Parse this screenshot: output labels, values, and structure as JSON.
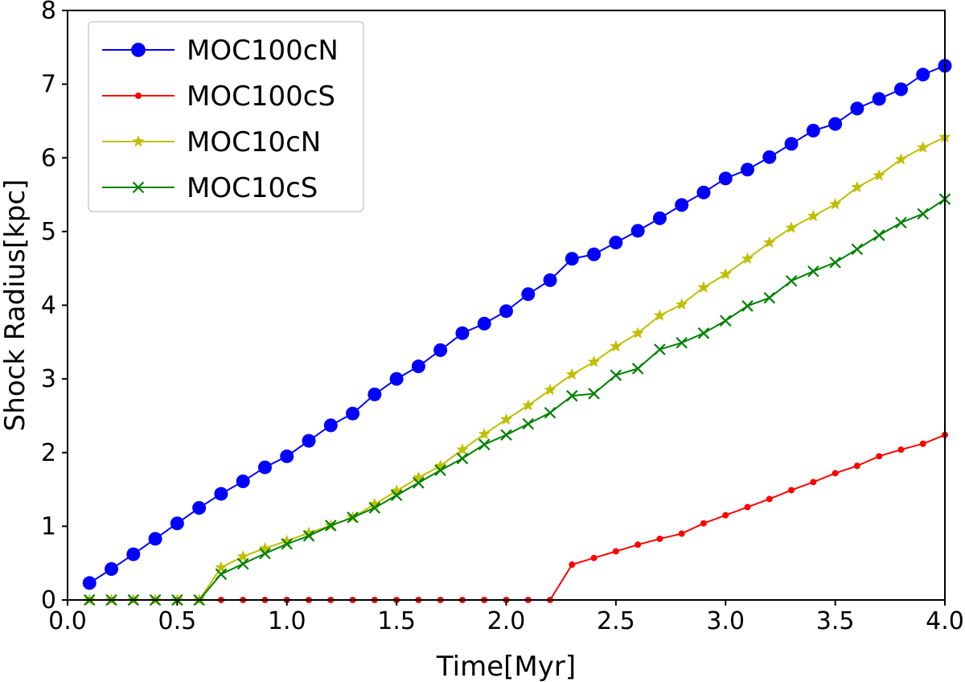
{
  "chart_data": {
    "type": "line",
    "title": "",
    "xlabel": "Time[Myr]",
    "ylabel": "Shock Radius[kpc]",
    "xlim": [
      0.0,
      4.0
    ],
    "ylim": [
      0,
      8
    ],
    "xticks": [
      "0.0",
      "0.5",
      "1.0",
      "1.5",
      "2.0",
      "2.5",
      "3.0",
      "3.5",
      "4.0"
    ],
    "yticks": [
      "0",
      "1",
      "2",
      "3",
      "4",
      "5",
      "6",
      "7",
      "8"
    ],
    "grid": false,
    "legend_position": "top-left",
    "x": [
      0.1,
      0.2,
      0.3,
      0.4,
      0.5,
      0.6,
      0.7,
      0.8,
      0.9,
      1.0,
      1.1,
      1.2,
      1.3,
      1.4,
      1.5,
      1.6,
      1.7,
      1.8,
      1.9,
      2.0,
      2.1,
      2.2,
      2.3,
      2.4,
      2.5,
      2.6,
      2.7,
      2.8,
      2.9,
      3.0,
      3.1,
      3.2,
      3.3,
      3.4,
      3.5,
      3.6,
      3.7,
      3.8,
      3.9,
      4.0
    ],
    "series": [
      {
        "name": "MOC100cN",
        "color": "#0000ff",
        "marker": "circle-large",
        "values": [
          0.23,
          0.42,
          0.62,
          0.83,
          1.04,
          1.25,
          1.44,
          1.61,
          1.8,
          1.95,
          2.16,
          2.37,
          2.53,
          2.79,
          3.0,
          3.17,
          3.39,
          3.62,
          3.75,
          3.92,
          4.15,
          4.34,
          4.63,
          4.69,
          4.85,
          5.01,
          5.18,
          5.36,
          5.53,
          5.72,
          5.84,
          6.01,
          6.19,
          6.37,
          6.46,
          6.67,
          6.8,
          6.93,
          7.13,
          7.25
        ]
      },
      {
        "name": "MOC100cS",
        "color": "#ff0000",
        "marker": "circle-small",
        "values": [
          0,
          0,
          0,
          0,
          0,
          0,
          0,
          0,
          0,
          0,
          0,
          0,
          0,
          0,
          0,
          0,
          0,
          0,
          0,
          0,
          0,
          0,
          0.48,
          0.57,
          0.66,
          0.75,
          0.83,
          0.9,
          1.04,
          1.15,
          1.26,
          1.37,
          1.49,
          1.6,
          1.72,
          1.82,
          1.95,
          2.04,
          2.12,
          2.24
        ]
      },
      {
        "name": "MOC10cN",
        "color": "#bfbf00",
        "marker": "star",
        "values": [
          0,
          0,
          0,
          0,
          0,
          0,
          0.44,
          0.59,
          0.7,
          0.8,
          0.91,
          1.01,
          1.12,
          1.3,
          1.48,
          1.66,
          1.82,
          2.04,
          2.25,
          2.45,
          2.64,
          2.85,
          3.06,
          3.23,
          3.44,
          3.62,
          3.86,
          4.01,
          4.24,
          4.42,
          4.63,
          4.85,
          5.05,
          5.21,
          5.37,
          5.6,
          5.76,
          5.98,
          6.14,
          6.28
        ]
      },
      {
        "name": "MOC10cS",
        "color": "#008000",
        "marker": "x",
        "values": [
          0,
          0,
          0,
          0,
          0,
          0,
          0.35,
          0.49,
          0.63,
          0.76,
          0.87,
          1.01,
          1.12,
          1.25,
          1.42,
          1.59,
          1.76,
          1.92,
          2.11,
          2.24,
          2.39,
          2.54,
          2.77,
          2.8,
          3.05,
          3.14,
          3.4,
          3.49,
          3.62,
          3.79,
          3.99,
          4.1,
          4.33,
          4.46,
          4.58,
          4.76,
          4.95,
          5.12,
          5.24,
          5.44
        ]
      }
    ]
  }
}
